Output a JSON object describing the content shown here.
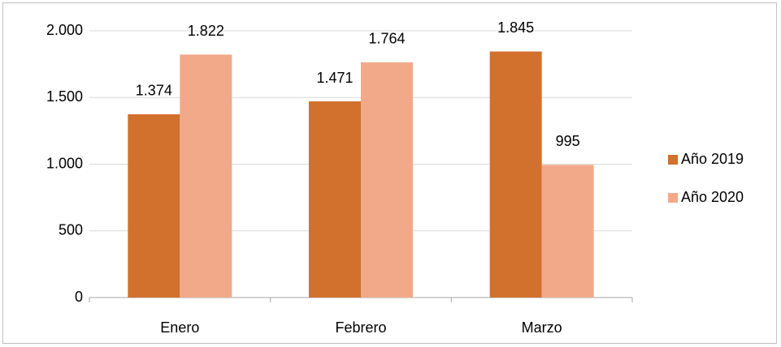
{
  "chart_data": {
    "type": "bar",
    "categories": [
      "Enero",
      "Febrero",
      "Marzo"
    ],
    "series": [
      {
        "name": "Año 2019",
        "color": "#d2702d",
        "values": [
          1374,
          1471,
          1845
        ],
        "value_labels": [
          "1.374",
          "1.471",
          "1.845"
        ]
      },
      {
        "name": "Año 2020",
        "color": "#f1a98a",
        "values": [
          1822,
          1764,
          995
        ],
        "value_labels": [
          "1.822",
          "1.764",
          "995"
        ]
      }
    ],
    "ylim": [
      0,
      2000
    ],
    "yticks": [
      0,
      500,
      {
        "value": 1000,
        "label": "1.000"
      },
      {
        "value": 1500,
        "label": "1.500"
      },
      {
        "value": 2000,
        "label": "2.000"
      }
    ],
    "grid": true,
    "legend": "right"
  }
}
